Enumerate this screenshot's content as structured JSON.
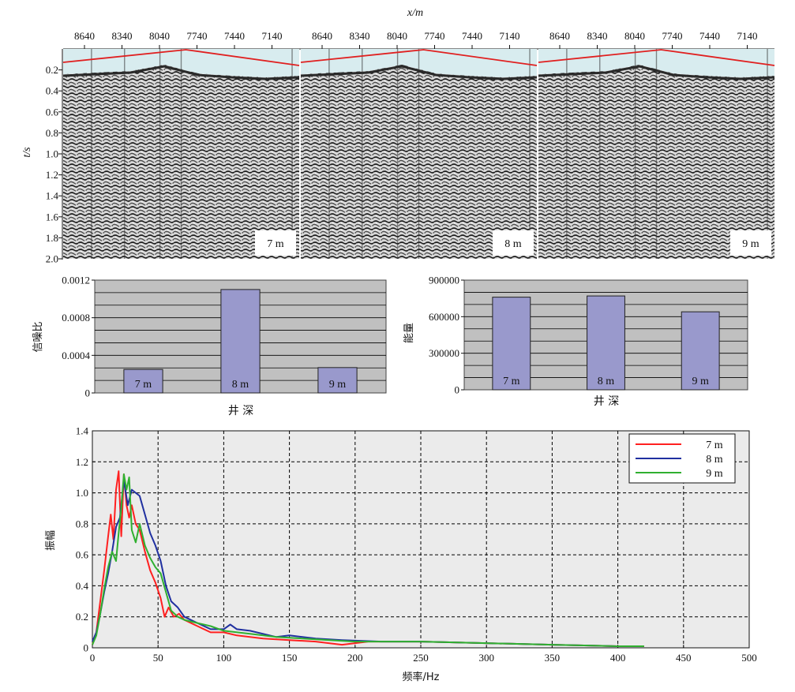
{
  "chart_data": [
    {
      "type": "heatmap",
      "xlabel": "x/m",
      "ylabel": "t/s",
      "x_ticks": [
        "8640",
        "8340",
        "8040",
        "7740",
        "7440",
        "7140"
      ],
      "y_ticks": [
        "0.2",
        "0.4",
        "0.6",
        "0.8",
        "1.0",
        "1.2",
        "1.4",
        "1.6",
        "1.8",
        "2.0"
      ],
      "ylim": [
        0,
        2.0
      ],
      "panels": [
        {
          "label": "7 m"
        },
        {
          "label": "8 m"
        },
        {
          "label": "9 m"
        }
      ],
      "colors": {
        "section_light": "#e8e8e8",
        "section_dark": "#2a2a2a",
        "first_break_line": "#e02020",
        "sky": "#d8ecef"
      }
    },
    {
      "type": "bar",
      "xlabel": "井 深",
      "ylabel": "信噪比",
      "categories": [
        "7 m",
        "8 m",
        "9 m"
      ],
      "values": [
        0.00025,
        0.0011,
        0.00027
      ],
      "ylim": [
        0,
        0.0012
      ],
      "y_ticks": [
        "0",
        "0.0004",
        "0.0008",
        "0.0012"
      ],
      "grid": true,
      "colors": {
        "bar": "#9999cc",
        "background": "#c0c0c0"
      }
    },
    {
      "type": "bar",
      "xlabel": "井 深",
      "ylabel": "能量",
      "categories": [
        "7 m",
        "8 m",
        "9 m"
      ],
      "values": [
        760000,
        770000,
        640000
      ],
      "ylim": [
        0,
        900000
      ],
      "y_ticks": [
        "0",
        "300000",
        "600000",
        "900000"
      ],
      "grid": true,
      "colors": {
        "bar": "#9999cc",
        "background": "#c0c0c0"
      }
    },
    {
      "type": "line",
      "xlabel": "频率/Hz",
      "ylabel": "振幅",
      "xlim": [
        0,
        500
      ],
      "ylim": [
        0,
        1.4
      ],
      "x_ticks": [
        "0",
        "50",
        "100",
        "150",
        "200",
        "250",
        "300",
        "350",
        "400",
        "450",
        "500"
      ],
      "y_ticks": [
        "0",
        "0.2",
        "0.4",
        "0.6",
        "0.8",
        "1.0",
        "1.2",
        "1.4"
      ],
      "grid": true,
      "legend": "top-right",
      "series": [
        {
          "name": "7 m",
          "color": "#ff2020",
          "x": [
            0,
            3,
            6,
            9,
            12,
            14,
            16,
            18,
            20,
            22,
            24,
            26,
            28,
            30,
            33,
            36,
            40,
            44,
            48,
            52,
            55,
            58,
            62,
            66,
            70,
            80,
            90,
            100,
            110,
            120,
            130,
            150,
            170,
            190,
            210,
            250,
            300,
            350,
            400,
            420
          ],
          "y": [
            0.02,
            0.1,
            0.3,
            0.5,
            0.72,
            0.86,
            0.7,
            1.02,
            1.14,
            0.72,
            1.12,
            0.92,
            0.84,
            0.92,
            0.8,
            0.76,
            0.62,
            0.5,
            0.42,
            0.32,
            0.2,
            0.26,
            0.2,
            0.22,
            0.18,
            0.14,
            0.1,
            0.1,
            0.08,
            0.07,
            0.06,
            0.05,
            0.04,
            0.02,
            0.04,
            0.04,
            0.03,
            0.02,
            0.01,
            0.01
          ]
        },
        {
          "name": "8 m",
          "color": "#2030a0",
          "x": [
            0,
            3,
            6,
            9,
            12,
            15,
            18,
            21,
            24,
            27,
            30,
            33,
            36,
            40,
            44,
            48,
            52,
            56,
            60,
            65,
            70,
            80,
            90,
            100,
            105,
            110,
            120,
            130,
            140,
            150,
            170,
            190,
            220,
            250,
            300,
            350,
            400
          ],
          "y": [
            0.04,
            0.1,
            0.22,
            0.36,
            0.48,
            0.62,
            0.78,
            0.84,
            1.08,
            0.92,
            1.02,
            1.0,
            0.98,
            0.86,
            0.74,
            0.66,
            0.56,
            0.4,
            0.3,
            0.26,
            0.2,
            0.16,
            0.12,
            0.12,
            0.15,
            0.12,
            0.11,
            0.09,
            0.07,
            0.08,
            0.06,
            0.05,
            0.04,
            0.04,
            0.03,
            0.02,
            0.01
          ]
        },
        {
          "name": "9 m",
          "color": "#30b030",
          "x": [
            0,
            3,
            6,
            9,
            12,
            15,
            18,
            20,
            22,
            24,
            26,
            28,
            30,
            33,
            36,
            40,
            44,
            48,
            52,
            56,
            60,
            65,
            70,
            80,
            90,
            100,
            120,
            140,
            160,
            180,
            200,
            250,
            300,
            350,
            400,
            420
          ],
          "y": [
            0.02,
            0.08,
            0.22,
            0.38,
            0.52,
            0.62,
            0.56,
            0.74,
            0.9,
            1.12,
            1.02,
            1.1,
            0.76,
            0.68,
            0.8,
            0.66,
            0.58,
            0.52,
            0.48,
            0.36,
            0.24,
            0.2,
            0.18,
            0.16,
            0.14,
            0.11,
            0.09,
            0.07,
            0.06,
            0.05,
            0.04,
            0.04,
            0.03,
            0.02,
            0.01,
            0.01
          ]
        }
      ]
    }
  ]
}
